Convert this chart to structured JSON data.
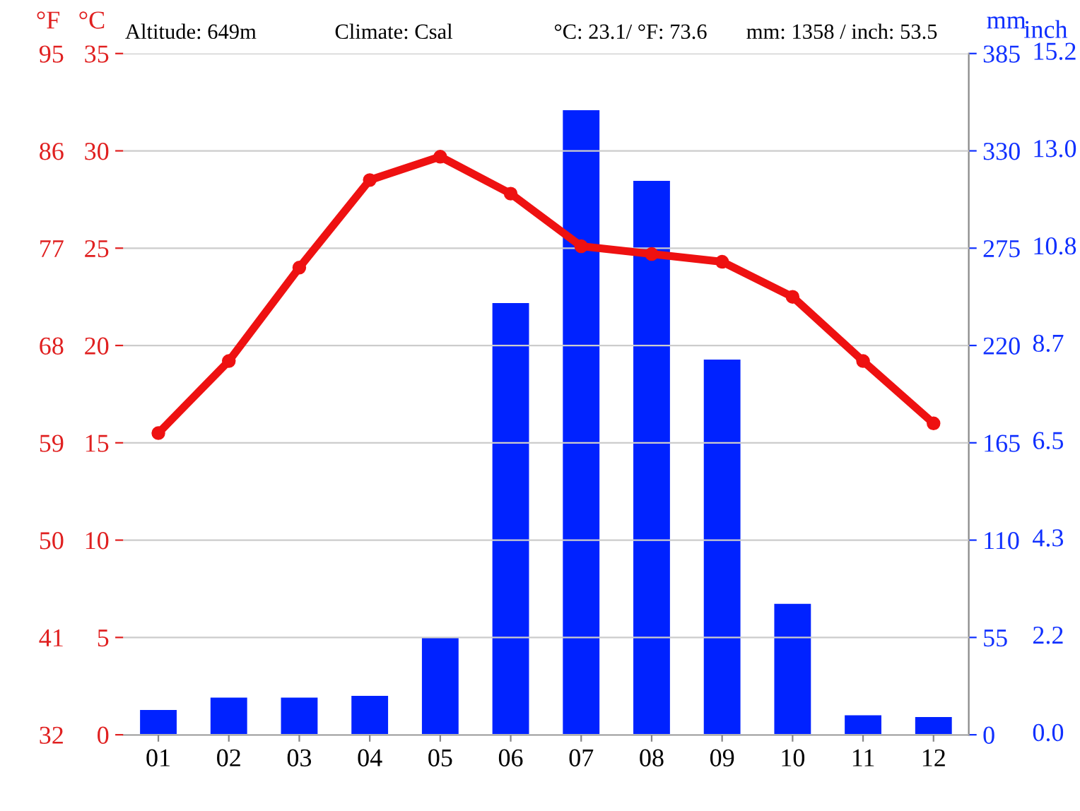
{
  "chart_data": {
    "type": "bar",
    "categories": [
      "01",
      "02",
      "03",
      "04",
      "05",
      "06",
      "07",
      "08",
      "09",
      "10",
      "11",
      "12"
    ],
    "series": [
      {
        "axis": "y2",
        "color": "#0022ff",
        "values": [
          14,
          21,
          21,
          22,
          55,
          244,
          353,
          313,
          212,
          74,
          11,
          10
        ]
      },
      {
        "type": "line",
        "color": "#ee1111",
        "values": [
          15.5,
          19.2,
          24.0,
          28.5,
          29.7,
          27.8,
          25.1,
          24.7,
          24.3,
          22.5,
          19.2,
          16.0
        ]
      }
    ],
    "ylabel": "°C",
    "y2label": "mm",
    "y3label": "°F",
    "ylim": [
      0,
      35
    ],
    "yticks": [
      0,
      5,
      10,
      15,
      20,
      25,
      30,
      35
    ],
    "y2lim": [
      0,
      385
    ],
    "y2ticks": [
      0,
      55,
      110,
      165,
      220,
      275,
      330,
      385
    ],
    "y3lim": [
      32,
      95
    ],
    "y3ticks": [
      32,
      41,
      50,
      59,
      68,
      77,
      86,
      95
    ],
    "annotations": [
      "Altitude: 649m",
      "Climate: Csal",
      "°C: 23.1/ °F: 73.6",
      "mm: 1358 / inch: 53.5",
      "inch",
      "0.0",
      "2.2",
      "4.3",
      "6.5",
      "8.7",
      "10.8",
      "13.0",
      "15.2"
    ],
    "grid": "y",
    "marker": "circle",
    "legend": false
  }
}
